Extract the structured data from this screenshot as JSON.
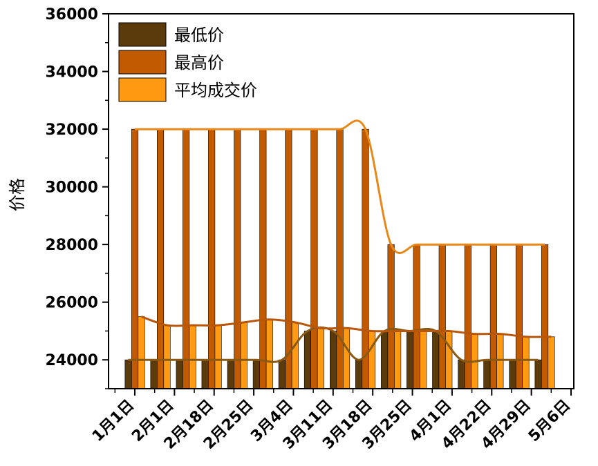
{
  "chart_data": {
    "type": "bar",
    "title": "",
    "xlabel": "",
    "ylabel": "价格",
    "ylim": [
      23000,
      36000
    ],
    "yticks": [
      24000,
      26000,
      28000,
      30000,
      32000,
      34000,
      36000
    ],
    "grid": false,
    "legend_position": "top-left",
    "x_tick_labels": [
      "1月1日",
      "2月1日",
      "2月18日",
      "2月25日",
      "3月4日",
      "3月11日",
      "3月18日",
      "3月25日",
      "4月1日",
      "4月22日",
      "4月29日",
      "5月6日"
    ],
    "categories": [
      "c1",
      "c2",
      "c3",
      "c4",
      "c5",
      "c6",
      "c7",
      "c8",
      "c9",
      "c10",
      "c11",
      "c12",
      "c13",
      "c14",
      "c15",
      "c16",
      "c17"
    ],
    "series": [
      {
        "name": "最低价",
        "color": "#5b3a0b",
        "values": [
          24000,
          24000,
          24000,
          24000,
          24000,
          24000,
          24000,
          25000,
          25000,
          24000,
          25000,
          25000,
          25000,
          24000,
          24000,
          24000,
          24000
        ]
      },
      {
        "name": "最高价",
        "color": "#c25a00",
        "values": [
          32000,
          32000,
          32000,
          32000,
          32000,
          32000,
          32000,
          32000,
          32000,
          32000,
          28000,
          28000,
          28000,
          28000,
          28000,
          28000,
          28000
        ]
      },
      {
        "name": "平均成交价",
        "color": "#ff9a12",
        "values": [
          25500,
          25200,
          25200,
          25200,
          25300,
          25400,
          25300,
          25100,
          25100,
          25000,
          25000,
          25000,
          25000,
          24900,
          24900,
          24800,
          24800
        ]
      }
    ]
  }
}
